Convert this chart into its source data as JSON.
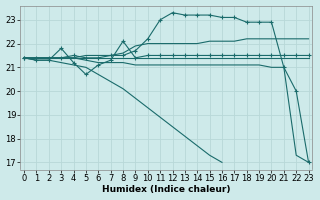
{
  "xlabel": "Humidex (Indice chaleur)",
  "bg_color": "#ceeaea",
  "grid_color": "#b8d8d8",
  "line_color": "#1a6b6b",
  "x_ticks": [
    0,
    1,
    2,
    3,
    4,
    5,
    6,
    7,
    8,
    9,
    10,
    11,
    12,
    13,
    14,
    15,
    16,
    17,
    18,
    19,
    20,
    21,
    22,
    23
  ],
  "y_ticks": [
    17,
    18,
    19,
    20,
    21,
    22,
    23
  ],
  "ylim": [
    16.7,
    23.6
  ],
  "xlim": [
    -0.3,
    23.3
  ],
  "series": [
    {
      "x": [
        0,
        1,
        2,
        3,
        4,
        5,
        6,
        7,
        8,
        9,
        10,
        11,
        12,
        13,
        14,
        15,
        16,
        17,
        18,
        19,
        20,
        21,
        22,
        23
      ],
      "y": [
        21.4,
        21.4,
        21.4,
        21.4,
        21.4,
        21.4,
        21.4,
        21.4,
        21.4,
        21.4,
        21.4,
        21.4,
        21.4,
        21.4,
        21.4,
        21.4,
        21.4,
        21.4,
        21.4,
        21.4,
        21.4,
        21.4,
        21.4,
        21.4
      ],
      "marker": null,
      "linewidth": 0.8
    },
    {
      "x": [
        0,
        1,
        2,
        3,
        4,
        5,
        6,
        7,
        8,
        9,
        10,
        11,
        12,
        13,
        14,
        15,
        16,
        17,
        18,
        19,
        20,
        21,
        22,
        23
      ],
      "y": [
        21.4,
        21.3,
        21.3,
        21.8,
        21.2,
        20.7,
        21.1,
        21.3,
        22.1,
        21.4,
        21.5,
        21.5,
        21.5,
        21.5,
        21.5,
        21.5,
        21.5,
        21.5,
        21.5,
        21.5,
        21.5,
        21.5,
        21.5,
        21.5
      ],
      "marker": "+",
      "linewidth": 0.8
    },
    {
      "x": [
        0,
        1,
        2,
        3,
        4,
        5,
        6,
        7,
        8,
        9,
        10,
        11,
        12,
        13,
        14,
        15,
        16,
        17,
        18,
        19,
        20,
        21,
        22,
        23
      ],
      "y": [
        21.4,
        21.4,
        21.4,
        21.4,
        21.4,
        21.5,
        21.5,
        21.5,
        21.6,
        21.9,
        22.0,
        22.0,
        22.0,
        22.0,
        22.0,
        22.1,
        22.1,
        22.1,
        22.2,
        22.2,
        22.2,
        22.2,
        22.2,
        22.2
      ],
      "marker": null,
      "linewidth": 0.8
    },
    {
      "x": [
        0,
        1,
        2,
        3,
        4,
        5,
        6,
        7,
        8,
        9,
        10,
        11,
        12,
        13,
        14,
        15,
        16,
        17,
        18,
        19,
        20,
        21,
        22,
        23
      ],
      "y": [
        21.4,
        21.4,
        21.4,
        21.4,
        21.4,
        21.3,
        21.2,
        21.2,
        21.2,
        21.1,
        21.1,
        21.1,
        21.1,
        21.1,
        21.1,
        21.1,
        21.1,
        21.1,
        21.1,
        21.1,
        21.0,
        21.0,
        17.3,
        17.0
      ],
      "marker": null,
      "linewidth": 0.8
    },
    {
      "x": [
        0,
        1,
        2,
        3,
        4,
        5,
        6,
        7,
        8,
        9,
        10,
        11,
        12,
        13,
        14,
        15,
        16,
        17,
        18,
        19,
        20,
        21,
        22,
        23
      ],
      "y": [
        21.4,
        21.3,
        21.3,
        21.2,
        21.1,
        21.0,
        20.7,
        20.4,
        20.1,
        19.7,
        19.3,
        18.9,
        18.5,
        18.1,
        17.7,
        17.3,
        17.0,
        null,
        null,
        null,
        null,
        null,
        null,
        null
      ],
      "marker": null,
      "linewidth": 0.8
    },
    {
      "x": [
        0,
        1,
        2,
        3,
        4,
        5,
        6,
        7,
        8,
        9,
        10,
        11,
        12,
        13,
        14,
        15,
        16,
        17,
        18,
        19,
        20,
        21,
        22,
        23
      ],
      "y": [
        21.4,
        21.4,
        21.4,
        21.4,
        21.5,
        21.4,
        21.4,
        21.5,
        21.5,
        21.7,
        22.2,
        23.0,
        23.3,
        23.2,
        23.2,
        23.2,
        23.1,
        23.1,
        22.9,
        22.9,
        22.9,
        21.0,
        20.0,
        17.0
      ],
      "marker": "+",
      "linewidth": 0.8
    }
  ]
}
